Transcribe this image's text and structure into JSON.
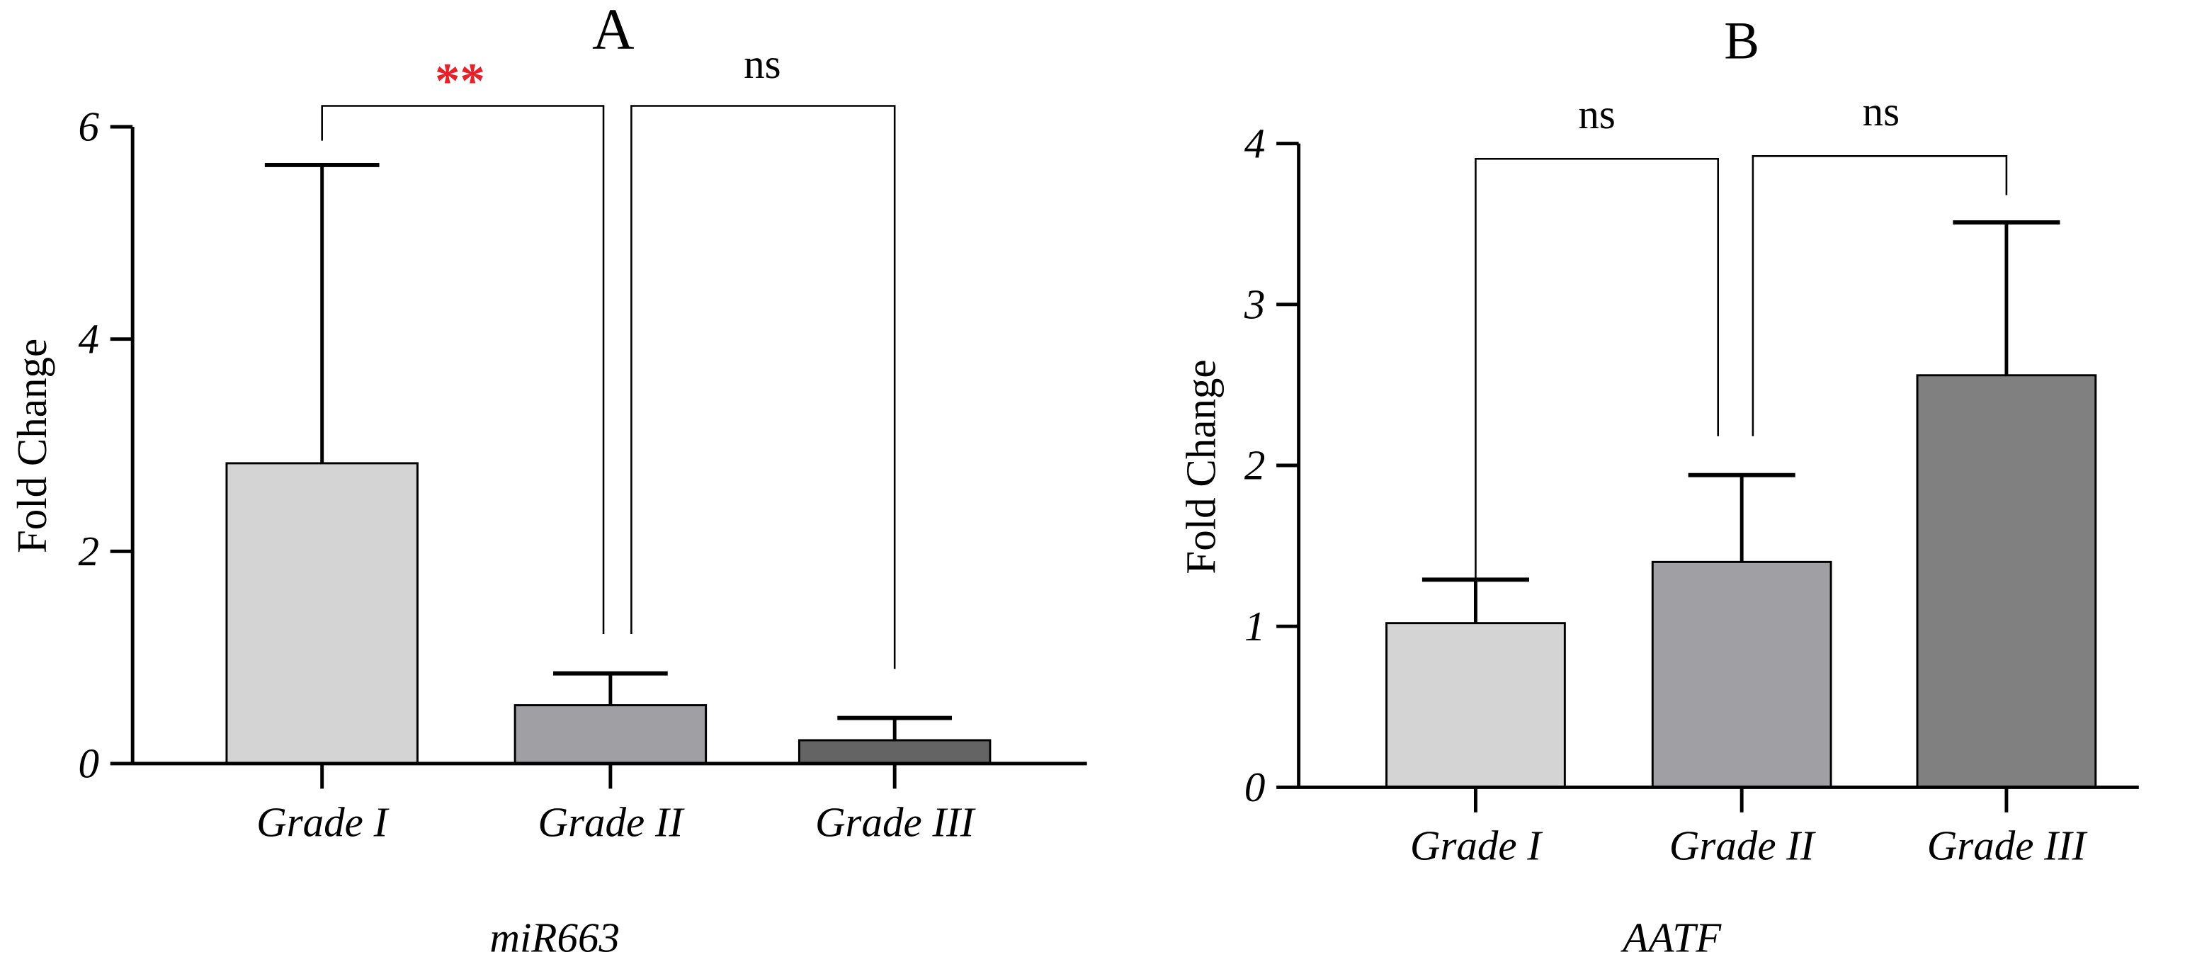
{
  "chart_data": [
    {
      "type": "bar",
      "title": "A",
      "xlabel": "miR663",
      "ylabel": "Fold Change",
      "ylim": [
        0,
        6
      ],
      "yticks": [
        0,
        2,
        4,
        6
      ],
      "categories": [
        "Grade I",
        "Grade II",
        "Grade III"
      ],
      "values": [
        2.83,
        0.55,
        0.22
      ],
      "error_upper": [
        5.64,
        0.85,
        0.43
      ],
      "colors": [
        "#d4d4d4",
        "#a0a0a4",
        "#646464"
      ],
      "grid": false,
      "significance": [
        {
          "from": "Grade I",
          "to": "Grade II",
          "label": "**",
          "color": "#e8202a"
        },
        {
          "from": "Grade II",
          "to": "Grade III",
          "label": "ns",
          "color": "#000000"
        }
      ]
    },
    {
      "type": "bar",
      "title": "B",
      "xlabel": "AATF",
      "ylabel": "Fold Change",
      "ylim": [
        0,
        4
      ],
      "yticks": [
        0,
        1,
        2,
        3,
        4
      ],
      "categories": [
        "Grade I",
        "Grade II",
        "Grade III"
      ],
      "values": [
        1.02,
        1.4,
        2.56
      ],
      "error_upper": [
        1.29,
        1.94,
        3.51
      ],
      "colors": [
        "#d4d4d4",
        "#a0a0a4",
        "#808080"
      ],
      "grid": false,
      "significance": [
        {
          "from": "Grade I",
          "to": "Grade II",
          "label": "ns",
          "color": "#000000"
        },
        {
          "from": "Grade II",
          "to": "Grade III",
          "label": "ns",
          "color": "#000000"
        }
      ]
    }
  ]
}
